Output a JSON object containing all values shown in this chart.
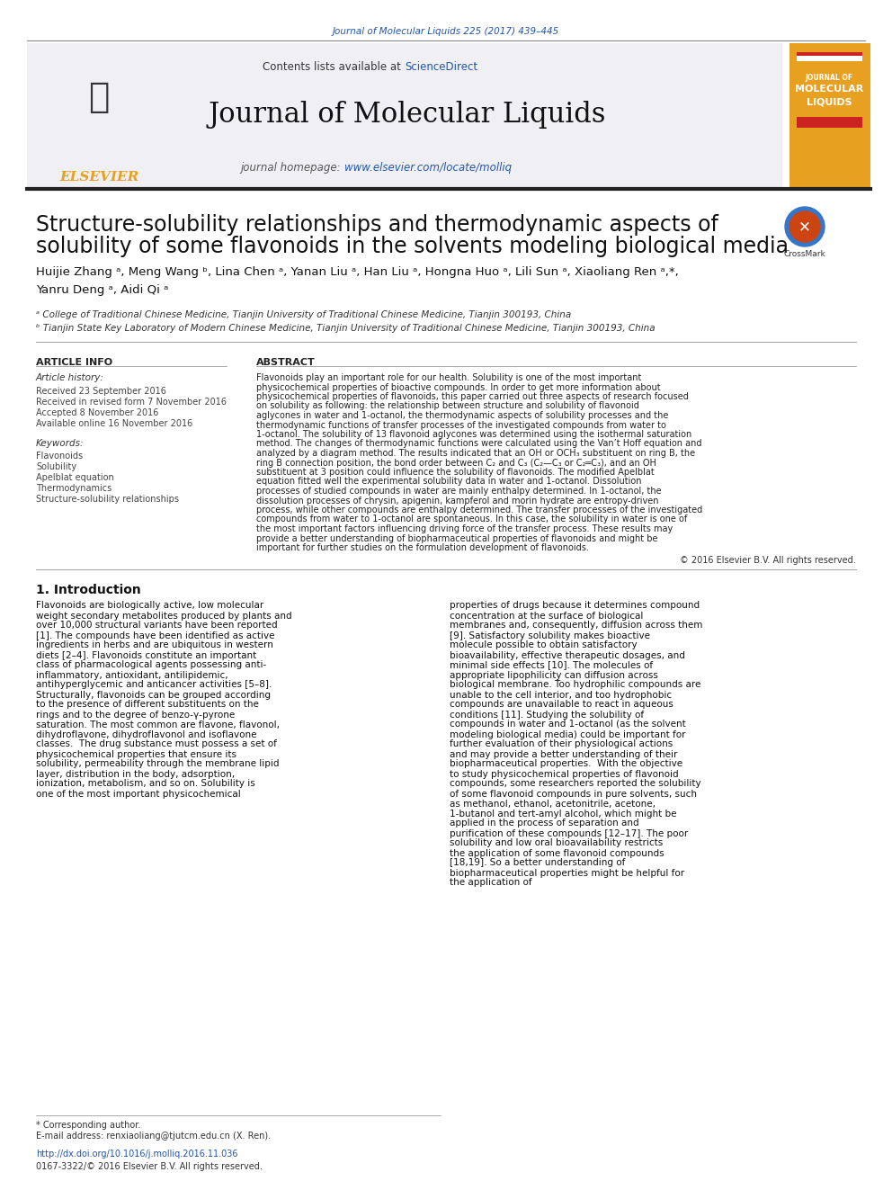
{
  "page_bg": "#ffffff",
  "top_citation": "Journal of Molecular Liquids 225 (2017) 439–445",
  "top_citation_color": "#2255aa",
  "journal_title": "Journal of Molecular Liquids",
  "journal_header_bg": "#f0f0f0",
  "contents_text": "Contents lists available at ",
  "sciencedirect_text": "ScienceDirect",
  "sciencedirect_color": "#2255aa",
  "homepage_text": "journal homepage: ",
  "homepage_url": "www.elsevier.com/locate/molliq",
  "homepage_url_color": "#2255aa",
  "elsevier_color": "#e8a020",
  "article_title_line1": "Structure-solubility relationships and thermodynamic aspects of",
  "article_title_line2": "solubility of some flavonoids in the solvents modeling biological media",
  "authors": "Huijie Zhang ᵃ, Meng Wang ᵇ, Lina Chen ᵃ, Yanan Liu ᵃ, Han Liu ᵃ, Hongna Huo ᵃ, Lili Sun ᵃ, Xiaoliang Ren ᵃ,*,",
  "authors2": "Yanru Deng ᵃ, Aidi Qi ᵃ",
  "affil_a": "ᵃ College of Traditional Chinese Medicine, Tianjin University of Traditional Chinese Medicine, Tianjin 300193, China",
  "affil_b": "ᵇ Tianjin State Key Laboratory of Modern Chinese Medicine, Tianjin University of Traditional Chinese Medicine, Tianjin 300193, China",
  "article_info_title": "ARTICLE INFO",
  "article_history_title": "Article history:",
  "received": "Received 23 September 2016",
  "revised": "Received in revised form 7 November 2016",
  "accepted": "Accepted 8 November 2016",
  "online": "Available online 16 November 2016",
  "keywords_title": "Keywords:",
  "keywords": [
    "Flavonoids",
    "Solubility",
    "Apelblat equation",
    "Thermodynamics",
    "Structure-solubility relationships"
  ],
  "abstract_title": "ABSTRACT",
  "abstract_text": "Flavonoids play an important role for our health. Solubility is one of the most important physicochemical properties of bioactive compounds. In order to get more information about physicochemical properties of flavonoids, this paper carried out three aspects of research focused on solubility as following: the relationship between structure and solubility of flavonoid aglycones in water and 1-octanol, the thermodynamic aspects of solubility processes and the thermodynamic functions of transfer processes of the investigated compounds from water to 1-octanol. The solubility of 13 flavonoid aglycones was determined using the isothermal saturation method. The changes of thermodynamic functions were calculated using the Van’t Hoff equation and analyzed by a diagram method. The results indicated that an OH or OCH₃ substituent on ring B, the ring B connection position, the bond order between C₂ and C₃ (C₂—C₃ or C₂═C₃), and an OH substituent at 3 position could influence the solubility of flavonoids. The modified Apelblat equation fitted well the experimental solubility data in water and 1-octanol. Dissolution processes of studied compounds in water are mainly enthalpy determined. In 1-octanol, the dissolution processes of chrysin, apigenin, kampferol and morin hydrate are entropy-driven process, while other compounds are enthalpy determined. The transfer processes of the investigated compounds from water to 1-octanol are spontaneous. In this case, the solubility in water is one of the most important factors influencing driving force of the transfer process. These results may provide a better understanding of biopharmaceutical properties of flavonoids and might be important for further studies on the formulation development of flavonoids.",
  "copyright": "© 2016 Elsevier B.V. All rights reserved.",
  "section1_title": "1. Introduction",
  "intro_col1": "Flavonoids are biologically active, low molecular weight secondary metabolites produced by plants and over 10,000 structural variants have been reported [1]. The compounds have been identified as active ingredients in herbs and are ubiquitous in western diets [2–4]. Flavonoids constitute an important class of pharmacological agents possessing anti-inflammatory, antioxidant, antilipidemic, antihyperglycemic and anticancer activities [5–8]. Structurally, flavonoids can be grouped according to the presence of different substituents on the rings and to the degree of benzo-γ-pyrone saturation. The most common are flavone, flavonol, dihydroflavone, dihydroflavonol and isoflavone classes.\n\nThe drug substance must possess a set of physicochemical properties that ensure its solubility, permeability through the membrane lipid layer, distribution in the body, adsorption, ionization, metabolism, and so on. Solubility is one of the most important physicochemical",
  "intro_col2": "properties of drugs because it determines compound concentration at the surface of biological membranes and, consequently, diffusion across them [9]. Satisfactory solubility makes bioactive molecule possible to obtain satisfactory bioavailability, effective therapeutic dosages, and minimal side effects [10]. The molecules of appropriate lipophilicity can diffusion across biological membrane. Too hydrophilic compounds are unable to the cell interior, and too hydrophobic compounds are unavailable to react in aqueous conditions [11]. Studying the solubility of compounds in water and 1-octanol (as the solvent modeling biological media) could be important for further evaluation of their physiological actions and may provide a better understanding of their biopharmaceutical properties.\n\nWith the objective to study physicochemical properties of flavonoid compounds, some researchers reported the solubility of some flavonoid compounds in pure solvents, such as methanol, ethanol, acetonitrile, acetone, 1-butanol and tert-amyl alcohol, which might be applied in the process of separation and purification of these compounds [12–17]. The poor solubility and low oral bioavailability restricts the application of some flavonoid compounds [18,19]. So a better understanding of biopharmaceutical properties might be helpful for the application of",
  "footnote_star": "* Corresponding author.",
  "footnote_email": "E-mail address: renxiaoliang@tjutcm.edu.cn (X. Ren).",
  "doi_text": "http://dx.doi.org/10.1016/j.molliq.2016.11.036",
  "issn_text": "0167-3322/© 2016 Elsevier B.V. All rights reserved.",
  "doi_color": "#2255aa"
}
